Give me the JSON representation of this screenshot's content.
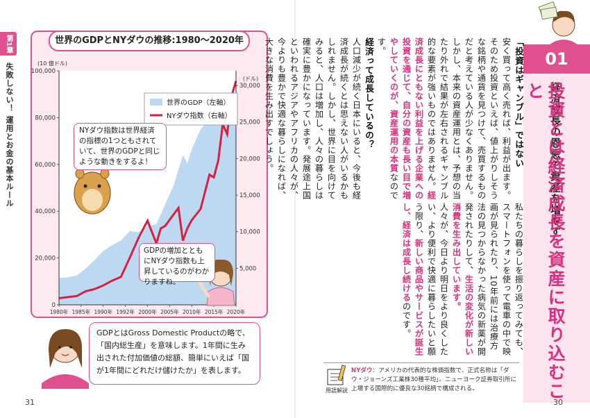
{
  "left_page": {
    "chapter_tab": "第1章",
    "chapter_side": "失敗しない！ 運用とお金の基本ルール",
    "page_number": "31"
  },
  "chart_data": {
    "type": "area",
    "title": "世界のGDPとNYダウの推移:1980〜2020年",
    "y_left_unit": "(10 億ドル)",
    "y_right_unit": "(ドル)",
    "ylim_left": [
      0,
      100000
    ],
    "ylim_right": [
      0,
      32000
    ],
    "y_left_ticks": [
      "0",
      "20,000",
      "40,000",
      "60,000",
      "80,000",
      "100,000"
    ],
    "y_right_ticks": [
      "5,000",
      "10,000",
      "15,000",
      "20,000",
      "25,000",
      "30,000"
    ],
    "x_ticks": [
      "1980年",
      "1985年",
      "1990年",
      "1992年",
      "2000年",
      "2005年",
      "2010年",
      "2015年",
      "2020年"
    ],
    "legend": [
      "世界のGDP（左軸）",
      "NYダウ指数（右軸）"
    ],
    "gdp_color": "#bcd9f1",
    "dow_color": "#d62040",
    "series": [
      {
        "name": "世界のGDP（左軸）",
        "x": [
          1980,
          1982,
          1984,
          1986,
          1988,
          1990,
          1992,
          1994,
          1996,
          1998,
          2000,
          2002,
          2004,
          2006,
          2008,
          2009,
          2010,
          2012,
          2014,
          2016,
          2018,
          2019,
          2020
        ],
        "values": [
          11500,
          11800,
          12500,
          15500,
          19000,
          23000,
          25500,
          27500,
          31500,
          31000,
          33500,
          34500,
          43000,
          51500,
          64000,
          60500,
          66500,
          75000,
          79500,
          76500,
          86000,
          87500,
          84500
        ]
      },
      {
        "name": "NYダウ指数（右軸）",
        "x": [
          1980,
          1982,
          1984,
          1986,
          1988,
          1990,
          1992,
          1994,
          1996,
          1998,
          2000,
          2002,
          2003,
          2004,
          2006,
          2007,
          2008,
          2009,
          2010,
          2012,
          2014,
          2015,
          2016,
          2017,
          2018,
          2019,
          2020
        ],
        "values": [
          900,
          1050,
          1200,
          1850,
          2150,
          2650,
          3300,
          3830,
          6450,
          9200,
          11500,
          8400,
          10450,
          10800,
          12450,
          13250,
          8780,
          10450,
          11580,
          13100,
          17800,
          17430,
          19760,
          24720,
          23330,
          28530,
          30600
        ]
      }
    ]
  },
  "bubbles": {
    "b1": "NYダウ指数は世界経済の指標の1つともされていて、世界のGDPと同じような動きをするよ！",
    "b2": "GDPの増加とともにNYダウ指数も上昇しているのがわかりますね。",
    "b3": "GDPとはGross Domestic Productの略で、「国内総生産」を意味します。1年間に生み出された付加価値の総額、簡単にいえば「国が1年間にどれだけ儲けたか」を表します。"
  },
  "right_page": {
    "page_number": "30",
    "section_number": "01",
    "subtitle": "経済成長の恩恵で資産を増やす",
    "title": "投資とは経済成長を資産に取り込むこと",
    "head1": "「投資はギャンブル」ではない",
    "para1": "安く買って高く売れば、利益が出ます。そのため投資といえば、値上がりしそうな銘柄や通貨を見つけて、売買するものだと考えている人が少なくありません。しかし、本来の資産運用とは、予想の当たり外れで結果が左右されるギャンブル的な要素が強いものではありません。",
    "para1_hl": "経済成長にともない利益を上げる企業への投資を通じて、自分の資産も長い目で増やしていくのが、資産運用の本質",
    "para1_end": "なのです。",
    "head2": "経済って成長しているの？",
    "para2": "人口減少が続く日本にいると、今後も経済成長が続くとは思えない人がいるかもしれません。しかし、世界に目を向けてみると、人口は増加し、人々の暮らしは確実に豊かになっています。発展途上国といわれるアジアやアフリカの人々が、今よりも豊かで快適な暮らしになれば、大きな消費を生み出すでしょう。",
    "para3": "私たちの暮らしを振り返ってみても、スマートフォンを使って電車の中で映画が見られたり、10年前には治療方法の見つからなかった病気の新薬が開発されたりして、",
    "para3_hl": "生活の変化が新しい消費を生み出しています。",
    "para4": "人々が、今日より明日をより良くしたい、より便利で快適に暮らしたいと願う限り、",
    "para4_hl": "新しい商品やサービスが誕生し、経済は成長し続ける",
    "para4_end": "のです。",
    "note_label": "用語解説",
    "note_term": "NYダウ",
    "note_text": "：アメリカの代表的な株価指数で、正式名称は「ダウ・ジョーンズ工業株30種平均」。ニューヨーク証券取引所に上場する国際的に優良な30銘柄で構成される。"
  }
}
